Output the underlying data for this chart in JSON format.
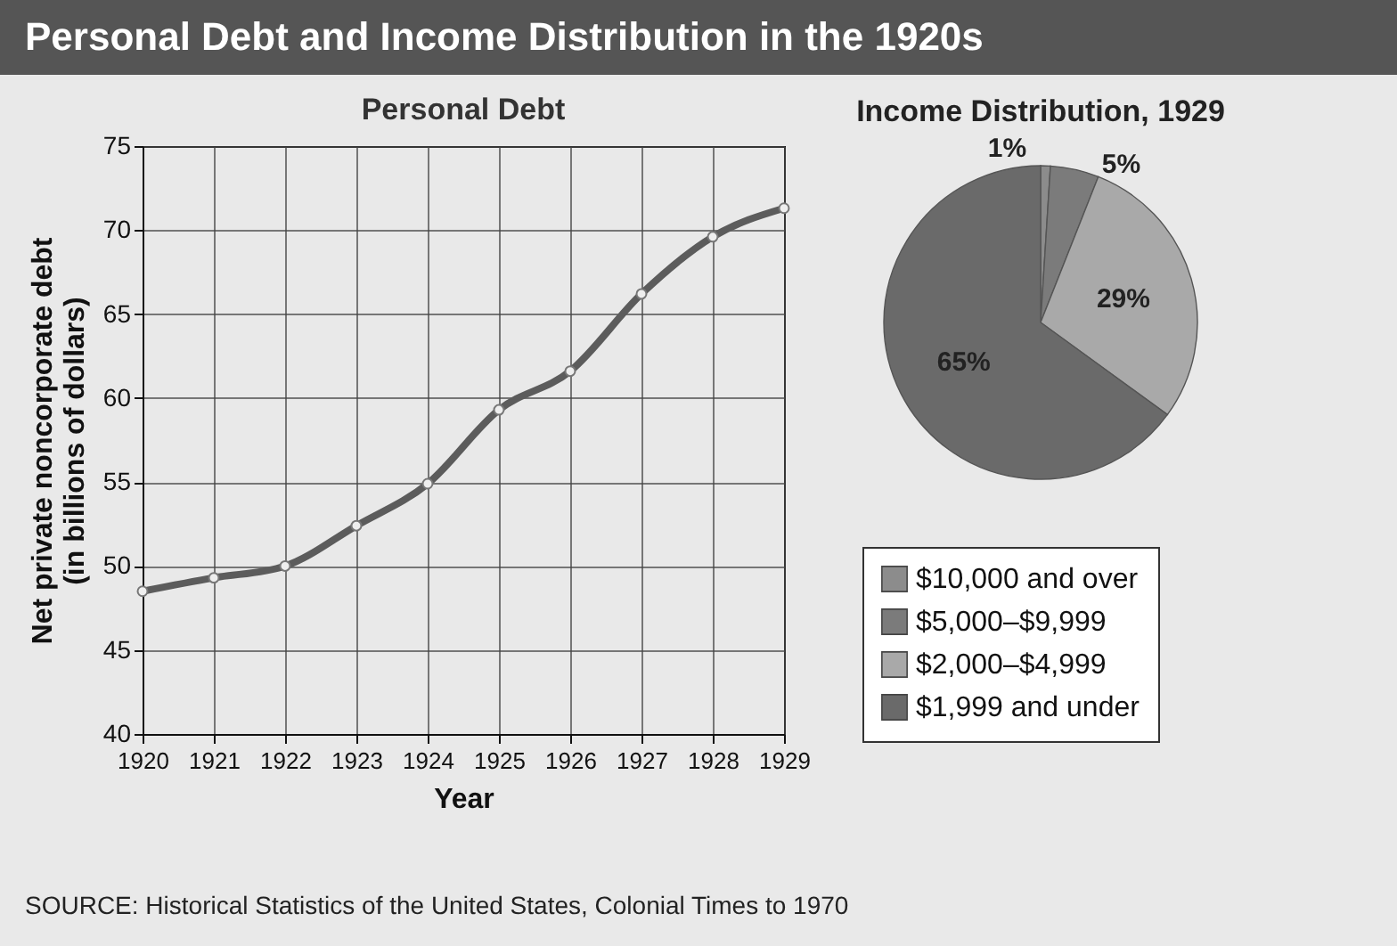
{
  "chart_data": [
    {
      "type": "line",
      "title": "Personal Debt",
      "xlabel": "Year",
      "ylabel": "Net private noncorporate debt\n(in billions of dollars)",
      "x": [
        1920,
        1921,
        1922,
        1923,
        1924,
        1925,
        1926,
        1927,
        1928,
        1929
      ],
      "series": [
        {
          "color": "#5c5c5c",
          "values": [
            48.5,
            49.3,
            50.0,
            52.4,
            54.9,
            59.3,
            61.6,
            66.2,
            69.6,
            71.3
          ]
        }
      ],
      "xlim": [
        1920,
        1929
      ],
      "xticks": [
        1920,
        1921,
        1922,
        1923,
        1924,
        1925,
        1926,
        1927,
        1928,
        1929
      ],
      "ylim": [
        40,
        75
      ],
      "yticks": [
        40,
        45,
        50,
        55,
        60,
        65,
        70,
        75
      ],
      "grid": true,
      "marker": "circle",
      "line_style": "solid",
      "annotations": [
        "Personal Debt and Income Distribution in the 1920s",
        "SOURCE: Historical Statistics of the United States, Colonial Times to 1970"
      ]
    },
    {
      "type": "pie",
      "title": "Income Distribution, 1929",
      "categories": [
        "$10,000 and over",
        "$5,000–$9,999",
        "$2,000–$4,999",
        "$1,999 and under"
      ],
      "values": [
        1,
        5,
        29,
        65
      ],
      "value_labels": [
        "1%",
        "5%",
        "29%",
        "65%"
      ],
      "colors": [
        "#8c8c8c",
        "#7b7b7b",
        "#a9a9a9",
        "#6a6a6a"
      ],
      "legend": "bottom"
    }
  ]
}
